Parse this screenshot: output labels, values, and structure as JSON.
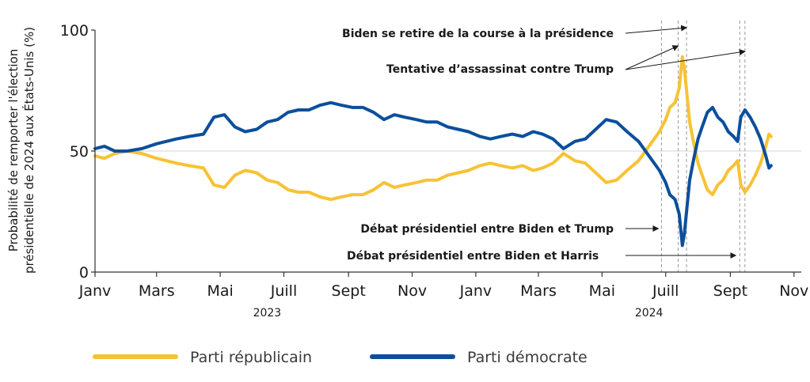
{
  "chart_data": {
    "type": "line",
    "ylabel_lines": [
      "Probabilité de remporter l'élection",
      "présidentielle de 2024 aux États-Unis (%)"
    ],
    "ylim": [
      0,
      100
    ],
    "yticks": [
      0,
      50,
      100
    ],
    "xlim": [
      "2023-01-01",
      "2024-11-08"
    ],
    "xticks": [
      {
        "date": "2023-01-01",
        "label": "Janv"
      },
      {
        "date": "2023-03-01",
        "label": "Mars"
      },
      {
        "date": "2023-05-01",
        "label": "Mai"
      },
      {
        "date": "2023-07-01",
        "label": "Juill"
      },
      {
        "date": "2023-09-01",
        "label": "Sept"
      },
      {
        "date": "2023-11-01",
        "label": "Nov"
      },
      {
        "date": "2024-01-01",
        "label": "Janv"
      },
      {
        "date": "2024-03-01",
        "label": "Mars"
      },
      {
        "date": "2024-05-01",
        "label": "Mai"
      },
      {
        "date": "2024-07-01",
        "label": "Juill"
      },
      {
        "date": "2024-09-01",
        "label": "Sept"
      },
      {
        "date": "2024-11-01",
        "label": "Nov"
      }
    ],
    "year_labels": [
      {
        "date": "2023-06-15",
        "label": "2023"
      },
      {
        "date": "2024-06-15",
        "label": "2024"
      }
    ],
    "grid": "reference line at 50",
    "legend_position": "bottom",
    "series": [
      {
        "name": "Parti républicain",
        "color": "#f7c234",
        "points": [
          [
            "2023-01-01",
            48
          ],
          [
            "2023-01-10",
            47
          ],
          [
            "2023-01-20",
            49
          ],
          [
            "2023-02-01",
            50
          ],
          [
            "2023-02-15",
            49
          ],
          [
            "2023-03-01",
            47
          ],
          [
            "2023-03-20",
            45
          ],
          [
            "2023-04-01",
            44
          ],
          [
            "2023-04-15",
            43
          ],
          [
            "2023-04-25",
            36
          ],
          [
            "2023-05-05",
            35
          ],
          [
            "2023-05-15",
            40
          ],
          [
            "2023-05-25",
            42
          ],
          [
            "2023-06-05",
            41
          ],
          [
            "2023-06-15",
            38
          ],
          [
            "2023-06-25",
            37
          ],
          [
            "2023-07-05",
            34
          ],
          [
            "2023-07-15",
            33
          ],
          [
            "2023-07-25",
            33
          ],
          [
            "2023-08-05",
            31
          ],
          [
            "2023-08-15",
            30
          ],
          [
            "2023-08-25",
            31
          ],
          [
            "2023-09-05",
            32
          ],
          [
            "2023-09-15",
            32
          ],
          [
            "2023-09-25",
            34
          ],
          [
            "2023-10-05",
            37
          ],
          [
            "2023-10-15",
            35
          ],
          [
            "2023-10-25",
            36
          ],
          [
            "2023-11-05",
            37
          ],
          [
            "2023-11-15",
            38
          ],
          [
            "2023-11-25",
            38
          ],
          [
            "2023-12-05",
            40
          ],
          [
            "2023-12-15",
            41
          ],
          [
            "2023-12-25",
            42
          ],
          [
            "2024-01-05",
            44
          ],
          [
            "2024-01-15",
            45
          ],
          [
            "2024-01-25",
            44
          ],
          [
            "2024-02-05",
            43
          ],
          [
            "2024-02-15",
            44
          ],
          [
            "2024-02-25",
            42
          ],
          [
            "2024-03-05",
            43
          ],
          [
            "2024-03-15",
            45
          ],
          [
            "2024-03-25",
            49
          ],
          [
            "2024-04-05",
            46
          ],
          [
            "2024-04-15",
            45
          ],
          [
            "2024-04-25",
            41
          ],
          [
            "2024-05-05",
            37
          ],
          [
            "2024-05-15",
            38
          ],
          [
            "2024-05-25",
            42
          ],
          [
            "2024-06-05",
            46
          ],
          [
            "2024-06-15",
            52
          ],
          [
            "2024-06-25",
            58
          ],
          [
            "2024-07-01",
            63
          ],
          [
            "2024-07-05",
            68
          ],
          [
            "2024-07-10",
            70
          ],
          [
            "2024-07-14",
            76
          ],
          [
            "2024-07-17",
            89
          ],
          [
            "2024-07-19",
            84
          ],
          [
            "2024-07-21",
            75
          ],
          [
            "2024-07-24",
            62
          ],
          [
            "2024-07-28",
            53
          ],
          [
            "2024-08-01",
            45
          ],
          [
            "2024-08-05",
            40
          ],
          [
            "2024-08-10",
            34
          ],
          [
            "2024-08-15",
            32
          ],
          [
            "2024-08-20",
            36
          ],
          [
            "2024-08-25",
            38
          ],
          [
            "2024-08-30",
            42
          ],
          [
            "2024-09-04",
            44
          ],
          [
            "2024-09-08",
            46
          ],
          [
            "2024-09-11",
            36
          ],
          [
            "2024-09-15",
            33
          ],
          [
            "2024-09-20",
            36
          ],
          [
            "2024-09-25",
            40
          ],
          [
            "2024-09-30",
            45
          ],
          [
            "2024-10-05",
            52
          ],
          [
            "2024-10-08",
            57
          ],
          [
            "2024-10-10",
            56
          ]
        ]
      },
      {
        "name": "Parti démocrate",
        "color": "#0b4f9c",
        "points": [
          [
            "2023-01-01",
            51
          ],
          [
            "2023-01-10",
            52
          ],
          [
            "2023-01-20",
            50
          ],
          [
            "2023-02-01",
            50
          ],
          [
            "2023-02-15",
            51
          ],
          [
            "2023-03-01",
            53
          ],
          [
            "2023-03-20",
            55
          ],
          [
            "2023-04-01",
            56
          ],
          [
            "2023-04-15",
            57
          ],
          [
            "2023-04-25",
            64
          ],
          [
            "2023-05-05",
            65
          ],
          [
            "2023-05-15",
            60
          ],
          [
            "2023-05-25",
            58
          ],
          [
            "2023-06-05",
            59
          ],
          [
            "2023-06-15",
            62
          ],
          [
            "2023-06-25",
            63
          ],
          [
            "2023-07-05",
            66
          ],
          [
            "2023-07-15",
            67
          ],
          [
            "2023-07-25",
            67
          ],
          [
            "2023-08-05",
            69
          ],
          [
            "2023-08-15",
            70
          ],
          [
            "2023-08-25",
            69
          ],
          [
            "2023-09-05",
            68
          ],
          [
            "2023-09-15",
            68
          ],
          [
            "2023-09-25",
            66
          ],
          [
            "2023-10-05",
            63
          ],
          [
            "2023-10-15",
            65
          ],
          [
            "2023-10-25",
            64
          ],
          [
            "2023-11-05",
            63
          ],
          [
            "2023-11-15",
            62
          ],
          [
            "2023-11-25",
            62
          ],
          [
            "2023-12-05",
            60
          ],
          [
            "2023-12-15",
            59
          ],
          [
            "2023-12-25",
            58
          ],
          [
            "2024-01-05",
            56
          ],
          [
            "2024-01-15",
            55
          ],
          [
            "2024-01-25",
            56
          ],
          [
            "2024-02-05",
            57
          ],
          [
            "2024-02-15",
            56
          ],
          [
            "2024-02-25",
            58
          ],
          [
            "2024-03-05",
            57
          ],
          [
            "2024-03-15",
            55
          ],
          [
            "2024-03-25",
            51
          ],
          [
            "2024-04-05",
            54
          ],
          [
            "2024-04-15",
            55
          ],
          [
            "2024-04-25",
            59
          ],
          [
            "2024-05-05",
            63
          ],
          [
            "2024-05-15",
            62
          ],
          [
            "2024-05-25",
            58
          ],
          [
            "2024-06-05",
            54
          ],
          [
            "2024-06-15",
            48
          ],
          [
            "2024-06-25",
            42
          ],
          [
            "2024-07-01",
            37
          ],
          [
            "2024-07-05",
            32
          ],
          [
            "2024-07-10",
            30
          ],
          [
            "2024-07-14",
            24
          ],
          [
            "2024-07-17",
            11
          ],
          [
            "2024-07-19",
            16
          ],
          [
            "2024-07-21",
            25
          ],
          [
            "2024-07-24",
            38
          ],
          [
            "2024-07-28",
            47
          ],
          [
            "2024-08-01",
            55
          ],
          [
            "2024-08-05",
            60
          ],
          [
            "2024-08-10",
            66
          ],
          [
            "2024-08-15",
            68
          ],
          [
            "2024-08-20",
            64
          ],
          [
            "2024-08-25",
            62
          ],
          [
            "2024-08-30",
            58
          ],
          [
            "2024-09-04",
            56
          ],
          [
            "2024-09-08",
            54
          ],
          [
            "2024-09-11",
            64
          ],
          [
            "2024-09-15",
            67
          ],
          [
            "2024-09-20",
            64
          ],
          [
            "2024-09-25",
            60
          ],
          [
            "2024-09-30",
            55
          ],
          [
            "2024-10-05",
            48
          ],
          [
            "2024-10-08",
            43
          ],
          [
            "2024-10-10",
            44
          ]
        ]
      }
    ],
    "event_lines": [
      {
        "date": "2024-06-27",
        "label": "Débat présidentiel entre Biden et Trump"
      },
      {
        "date": "2024-07-13",
        "label": "Tentative d’assassinat contre Trump"
      },
      {
        "date": "2024-07-21",
        "label": "Biden se retire de la course à la présidence"
      },
      {
        "date": "2024-09-10",
        "label": "Débat présidentiel entre Biden et Harris"
      },
      {
        "date": "2024-09-15",
        "label": "Tentative d’assassinat contre Trump"
      }
    ],
    "annotations": [
      {
        "text": "Biden se retire de la course à la présidence"
      },
      {
        "text": "Tentative d’assassinat contre Trump"
      },
      {
        "text": "Débat présidentiel entre Biden et Trump"
      },
      {
        "text": "Débat présidentiel entre Biden et Harris"
      }
    ]
  }
}
